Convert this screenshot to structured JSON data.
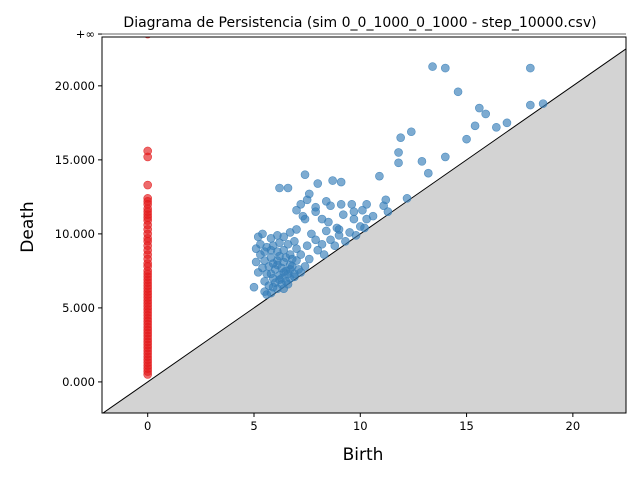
{
  "chart_data": {
    "type": "scatter",
    "title": "Diagrama de Persistencia (sim 0_0_1000_0_1000 - step_10000.csv)",
    "xlabel": "Birth",
    "ylabel": "Death",
    "xlim": [
      -2.15,
      22.5
    ],
    "ylim": [
      -2.1,
      23.3
    ],
    "x_ticks": [
      {
        "value": 0,
        "label": "0"
      },
      {
        "value": 5,
        "label": "5"
      },
      {
        "value": 10,
        "label": "10"
      },
      {
        "value": 15,
        "label": "15"
      },
      {
        "value": 20,
        "label": "20"
      }
    ],
    "y_ticks": [
      {
        "value": 0,
        "label": "0.000"
      },
      {
        "value": 5,
        "label": "5.000"
      },
      {
        "value": 10,
        "label": "10.000"
      },
      {
        "value": 15,
        "label": "15.000"
      },
      {
        "value": 20,
        "label": "20.000"
      },
      {
        "value": 23.5,
        "label": "+∞"
      }
    ],
    "infinity_y": 23.5,
    "diagonal": true,
    "grid": false,
    "series": [
      {
        "color": "#e41a1c",
        "points": [
          [
            0,
            23.5
          ],
          [
            0,
            15.6
          ],
          [
            0,
            15.2
          ],
          [
            0,
            13.3
          ],
          [
            0,
            12.4
          ],
          [
            0,
            12.2
          ],
          [
            0,
            12.0
          ],
          [
            0,
            11.7
          ],
          [
            0,
            11.5
          ],
          [
            0,
            11.3
          ],
          [
            0,
            11.1
          ],
          [
            0,
            10.9
          ],
          [
            0,
            10.6
          ],
          [
            0,
            10.3
          ],
          [
            0,
            10.0
          ],
          [
            0,
            9.7
          ],
          [
            0,
            9.5
          ],
          [
            0,
            9.2
          ],
          [
            0,
            8.9
          ],
          [
            0,
            8.6
          ],
          [
            0,
            8.3
          ],
          [
            0,
            8.0
          ],
          [
            0,
            7.8
          ],
          [
            0,
            7.5
          ],
          [
            0,
            7.3
          ],
          [
            0,
            7.1
          ],
          [
            0,
            6.9
          ],
          [
            0,
            6.7
          ],
          [
            0,
            6.5
          ],
          [
            0,
            6.3
          ],
          [
            0,
            6.1
          ],
          [
            0,
            5.9
          ],
          [
            0,
            5.7
          ],
          [
            0,
            5.5
          ],
          [
            0,
            5.3
          ],
          [
            0,
            5.1
          ],
          [
            0,
            4.9
          ],
          [
            0,
            4.7
          ],
          [
            0,
            4.5
          ],
          [
            0,
            4.3
          ],
          [
            0,
            4.1
          ],
          [
            0,
            3.9
          ],
          [
            0,
            3.7
          ],
          [
            0,
            3.5
          ],
          [
            0,
            3.3
          ],
          [
            0,
            3.1
          ],
          [
            0,
            2.9
          ],
          [
            0,
            2.7
          ],
          [
            0,
            2.5
          ],
          [
            0,
            2.3
          ],
          [
            0,
            2.1
          ],
          [
            0,
            1.9
          ],
          [
            0,
            1.7
          ],
          [
            0,
            1.5
          ],
          [
            0,
            1.3
          ],
          [
            0,
            1.1
          ],
          [
            0,
            0.9
          ],
          [
            0,
            0.7
          ],
          [
            0,
            0.5
          ]
        ]
      },
      {
        "color": "#377eb8",
        "points": [
          [
            13.4,
            21.3
          ],
          [
            14.0,
            21.2
          ],
          [
            18.0,
            21.2
          ],
          [
            14.6,
            19.6
          ],
          [
            15.6,
            18.5
          ],
          [
            15.9,
            18.1
          ],
          [
            18.0,
            18.7
          ],
          [
            18.6,
            18.8
          ],
          [
            15.4,
            17.3
          ],
          [
            16.9,
            17.5
          ],
          [
            16.4,
            17.2
          ],
          [
            12.4,
            16.9
          ],
          [
            11.9,
            16.5
          ],
          [
            15.0,
            16.4
          ],
          [
            11.8,
            15.5
          ],
          [
            14.0,
            15.2
          ],
          [
            12.9,
            14.9
          ],
          [
            11.8,
            14.8
          ],
          [
            13.2,
            14.1
          ],
          [
            10.9,
            13.9
          ],
          [
            7.4,
            14.0
          ],
          [
            8.7,
            13.6
          ],
          [
            9.1,
            13.5
          ],
          [
            8.0,
            13.4
          ],
          [
            6.2,
            13.1
          ],
          [
            6.6,
            13.1
          ],
          [
            11.2,
            12.3
          ],
          [
            12.2,
            12.4
          ],
          [
            11.1,
            11.9
          ],
          [
            11.3,
            11.5
          ],
          [
            10.6,
            11.2
          ],
          [
            10.1,
            11.6
          ],
          [
            9.6,
            12.0
          ],
          [
            9.1,
            12.0
          ],
          [
            8.4,
            12.2
          ],
          [
            7.6,
            12.7
          ],
          [
            7.5,
            12.3
          ],
          [
            7.2,
            12.0
          ],
          [
            7.0,
            11.6
          ],
          [
            7.9,
            11.8
          ],
          [
            8.6,
            11.9
          ],
          [
            9.2,
            11.3
          ],
          [
            9.7,
            11.5
          ],
          [
            10.3,
            12.0
          ],
          [
            10.3,
            11.0
          ],
          [
            9.7,
            11.0
          ],
          [
            8.9,
            10.4
          ],
          [
            8.5,
            10.8
          ],
          [
            7.9,
            11.5
          ],
          [
            7.4,
            11.0
          ],
          [
            7.3,
            11.2
          ],
          [
            8.2,
            11.0
          ],
          [
            10.2,
            10.4
          ],
          [
            10.0,
            10.5
          ],
          [
            9.5,
            10.1
          ],
          [
            9.0,
            9.9
          ],
          [
            8.6,
            9.6
          ],
          [
            8.2,
            9.3
          ],
          [
            7.7,
            10.0
          ],
          [
            7.0,
            10.3
          ],
          [
            8.8,
            9.2
          ],
          [
            9.3,
            9.5
          ],
          [
            9.8,
            9.9
          ],
          [
            9.0,
            10.3
          ],
          [
            8.4,
            10.2
          ],
          [
            7.9,
            9.6
          ],
          [
            7.5,
            9.2
          ],
          [
            7.0,
            9.0
          ],
          [
            8.3,
            8.6
          ],
          [
            8.0,
            8.9
          ],
          [
            7.6,
            8.3
          ],
          [
            7.2,
            8.6
          ],
          [
            7.4,
            7.8
          ],
          [
            6.9,
            7.3
          ],
          [
            6.7,
            7.0
          ],
          [
            6.5,
            6.8
          ],
          [
            6.3,
            6.6
          ],
          [
            6.1,
            6.3
          ],
          [
            5.8,
            6.0
          ],
          [
            5.5,
            6.1
          ],
          [
            5.6,
            5.9
          ],
          [
            5.0,
            6.4
          ],
          [
            5.2,
            7.4
          ],
          [
            5.1,
            8.1
          ],
          [
            5.3,
            8.6
          ],
          [
            5.1,
            9.0
          ],
          [
            5.2,
            9.8
          ],
          [
            5.4,
            10.0
          ],
          [
            5.8,
            9.7
          ],
          [
            6.1,
            9.9
          ],
          [
            6.4,
            9.8
          ],
          [
            6.7,
            10.1
          ],
          [
            6.9,
            9.5
          ],
          [
            6.6,
            9.3
          ],
          [
            6.2,
            9.4
          ],
          [
            5.9,
            9.2
          ],
          [
            5.6,
            9.1
          ],
          [
            5.3,
            9.3
          ],
          [
            5.5,
            8.8
          ],
          [
            5.8,
            8.9
          ],
          [
            6.1,
            8.8
          ],
          [
            6.4,
            8.9
          ],
          [
            6.7,
            8.6
          ],
          [
            7.0,
            8.2
          ],
          [
            6.8,
            7.8
          ],
          [
            6.5,
            7.5
          ],
          [
            6.2,
            7.2
          ],
          [
            5.9,
            7.0
          ],
          [
            5.6,
            7.3
          ],
          [
            5.4,
            7.7
          ],
          [
            5.5,
            8.2
          ],
          [
            5.8,
            8.4
          ],
          [
            6.1,
            8.2
          ],
          [
            6.4,
            8.1
          ],
          [
            6.7,
            7.9
          ],
          [
            6.3,
            7.7
          ],
          [
            6.0,
            7.6
          ],
          [
            5.7,
            7.8
          ],
          [
            5.9,
            8.0
          ],
          [
            6.2,
            8.5
          ],
          [
            6.5,
            8.4
          ],
          [
            6.8,
            8.3
          ],
          [
            7.1,
            7.6
          ],
          [
            6.9,
            7.1
          ],
          [
            6.6,
            7.3
          ],
          [
            6.3,
            7.0
          ],
          [
            6.0,
            6.7
          ],
          [
            5.7,
            6.5
          ],
          [
            5.5,
            6.8
          ],
          [
            5.8,
            7.3
          ],
          [
            6.1,
            7.9
          ],
          [
            6.4,
            7.4
          ],
          [
            6.7,
            7.6
          ],
          [
            6.2,
            6.9
          ],
          [
            5.9,
            6.4
          ],
          [
            6.4,
            6.3
          ],
          [
            6.6,
            6.6
          ],
          [
            7.2,
            7.4
          ]
        ]
      }
    ]
  }
}
